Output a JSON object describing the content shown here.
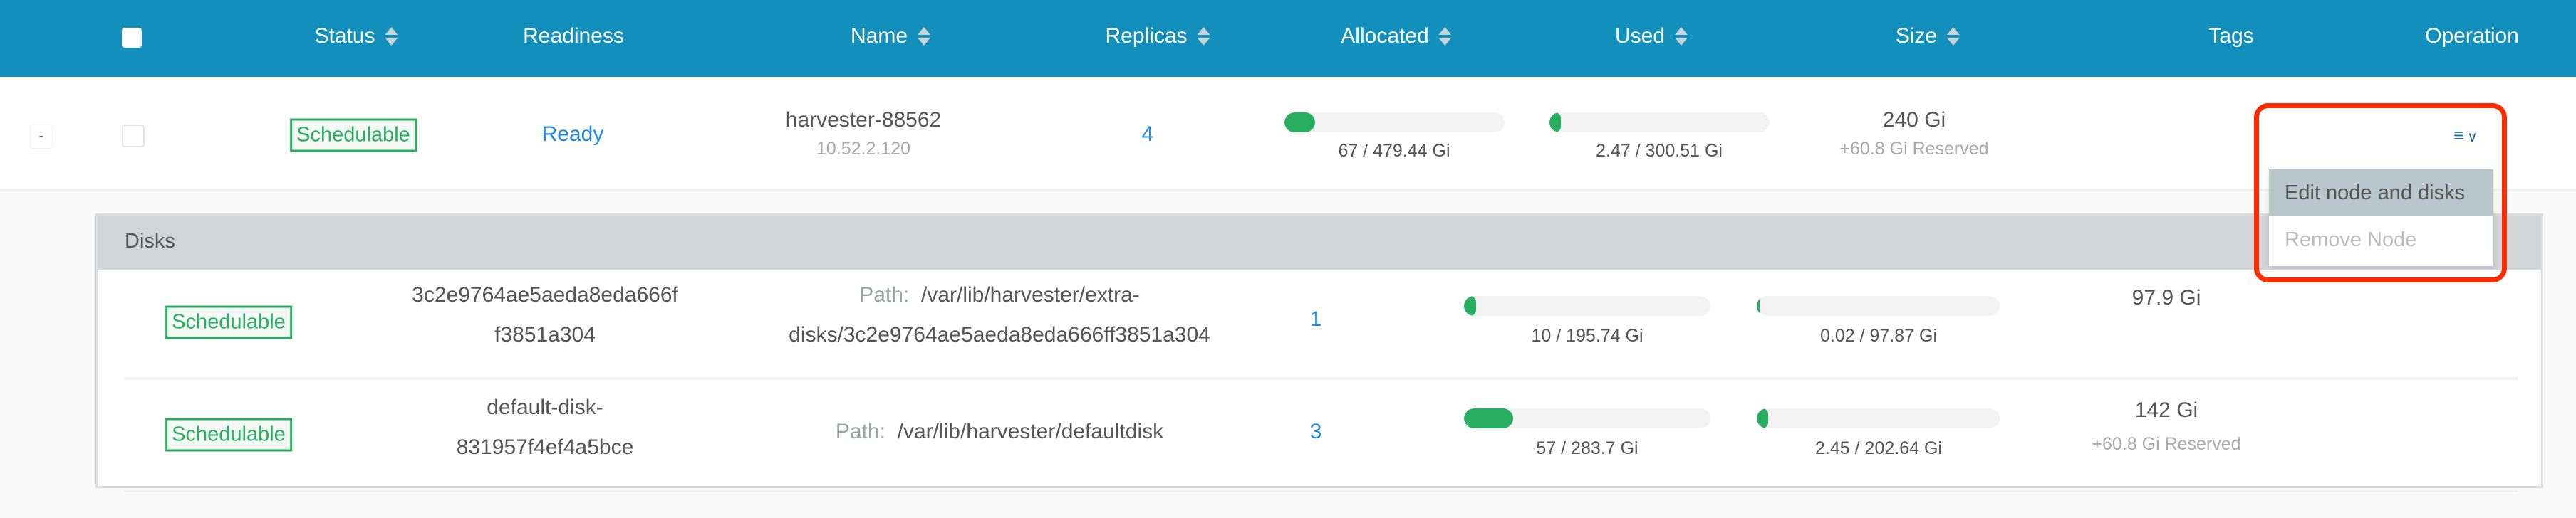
{
  "header": {
    "columns": [
      {
        "label": "Status",
        "sortable": true
      },
      {
        "label": "Readiness",
        "sortable": false
      },
      {
        "label": "Name",
        "sortable": true
      },
      {
        "label": "Replicas",
        "sortable": true
      },
      {
        "label": "Allocated",
        "sortable": true
      },
      {
        "label": "Used",
        "sortable": true
      },
      {
        "label": "Size",
        "sortable": true
      },
      {
        "label": "Tags",
        "sortable": false
      },
      {
        "label": "Operation",
        "sortable": false
      }
    ]
  },
  "node": {
    "expand_toggle": "-",
    "status": "Schedulable",
    "readiness": "Ready",
    "name": "harvester-88562",
    "ip": "10.52.2.120",
    "replicas": "4",
    "allocated": {
      "label": "67 / 479.44 Gi",
      "percent": 14
    },
    "used": {
      "label": "2.47 / 300.51 Gi",
      "percent": 0.8
    },
    "size": "240 Gi",
    "reserved": "+60.8 Gi Reserved",
    "operation_icon": "list-chevron-down-icon"
  },
  "operation_menu": {
    "items": [
      {
        "label": "Edit node and disks",
        "state": "hovered"
      },
      {
        "label": "Remove Node",
        "state": "disabled"
      }
    ]
  },
  "disks": {
    "title": "Disks",
    "path_label": "Path:",
    "rows": [
      {
        "status": "Schedulable",
        "name_line1": "3c2e9764ae5aeda8eda666f",
        "name_line2": "f3851a304",
        "path_line1": "/var/lib/harvester/extra-",
        "path_line2": "disks/3c2e9764ae5aeda8eda666ff3851a304",
        "replicas": "1",
        "allocated": {
          "label": "10 / 195.74 Gi",
          "percent": 5
        },
        "used": {
          "label": "0.02 / 97.87 Gi",
          "percent": 0
        },
        "size": "97.9 Gi",
        "reserved": ""
      },
      {
        "status": "Schedulable",
        "name_line1": "default-disk-",
        "name_line2": "831957f4ef4a5bce",
        "path_line1": "/var/lib/harvester/defaultdisk",
        "path_line2": "",
        "replicas": "3",
        "allocated": {
          "label": "57 / 283.7 Gi",
          "percent": 20
        },
        "used": {
          "label": "2.45 / 202.64 Gi",
          "percent": 1.2
        },
        "size": "142 Gi",
        "reserved": "+60.8 Gi Reserved"
      }
    ]
  },
  "colors": {
    "header": "#128fbb",
    "success": "#27ae60",
    "link": "#1e88e5",
    "highlight": "#ff2a00"
  }
}
